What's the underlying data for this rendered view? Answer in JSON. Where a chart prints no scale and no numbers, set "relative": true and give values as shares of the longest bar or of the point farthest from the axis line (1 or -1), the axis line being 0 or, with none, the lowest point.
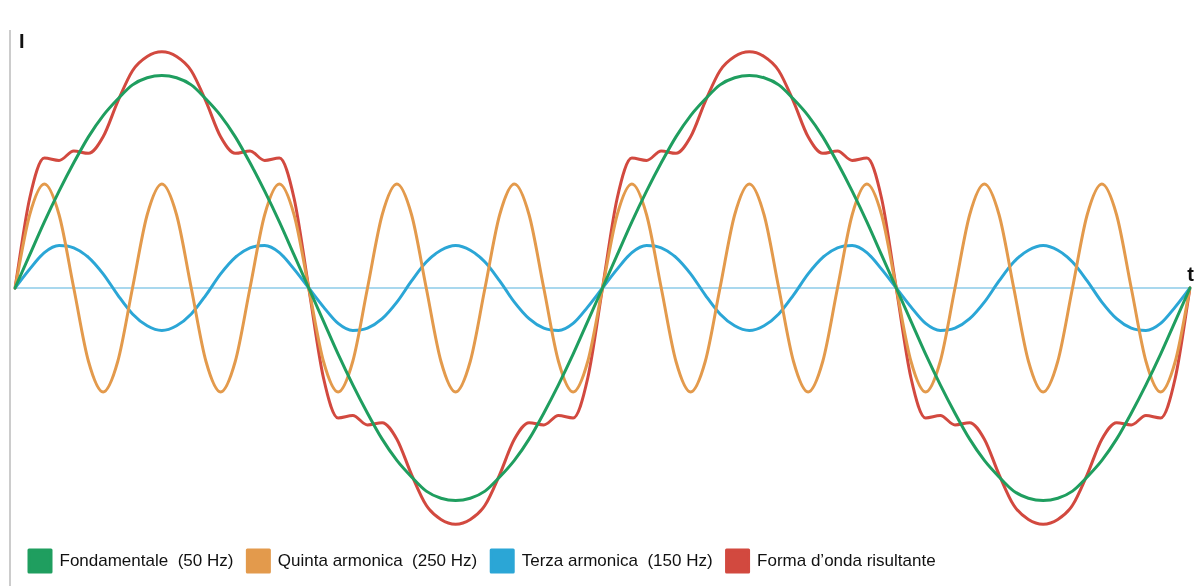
{
  "chart_data": {
    "type": "line",
    "relative": true,
    "xlabel": "t",
    "ylabel": "I",
    "legend": "bottom",
    "ref_lines": [
      {
        "axis": "y",
        "value": 0,
        "color": "#8ccbe8"
      }
    ],
    "marker": "none",
    "line_style": "solid",
    "categories": [
      null,
      null,
      null,
      null,
      null,
      null,
      null,
      null,
      null,
      null,
      null,
      null,
      null,
      null,
      null,
      null,
      null,
      null,
      null,
      null,
      null,
      null,
      null,
      null,
      null,
      null,
      null,
      null,
      null,
      null,
      null,
      null,
      null,
      null,
      null,
      null,
      null,
      null,
      null,
      null,
      null,
      null,
      null,
      null,
      null,
      null,
      null,
      null,
      null,
      null,
      null,
      null,
      null,
      null,
      null,
      null,
      null,
      null,
      null,
      null,
      null,
      null,
      null,
      null,
      null,
      null,
      null,
      null,
      null,
      null,
      null,
      null,
      null,
      null,
      null,
      null,
      null,
      null,
      null,
      null,
      null
    ],
    "series": [
      {
        "name": "Fondamentale  (50 Hz)",
        "color": "#1f9e5f",
        "values": [
          0,
          0.14,
          0.28,
          0.41,
          0.53,
          0.64,
          0.73,
          0.8,
          0.86,
          0.89,
          0.9,
          0.89,
          0.86,
          0.8,
          0.73,
          0.64,
          0.53,
          0.41,
          0.28,
          0.14,
          0,
          -0.14,
          -0.28,
          -0.41,
          -0.53,
          -0.64,
          -0.73,
          -0.8,
          -0.86,
          -0.89,
          -0.9,
          -0.89,
          -0.86,
          -0.8,
          -0.73,
          -0.64,
          -0.53,
          -0.41,
          -0.28,
          -0.14,
          0,
          0.14,
          0.28,
          0.41,
          0.53,
          0.64,
          0.73,
          0.8,
          0.86,
          0.89,
          0.9,
          0.89,
          0.86,
          0.8,
          0.73,
          0.64,
          0.53,
          0.41,
          0.28,
          0.14,
          0,
          -0.14,
          -0.28,
          -0.41,
          -0.53,
          -0.64,
          -0.73,
          -0.8,
          -0.86,
          -0.89,
          -0.9,
          -0.89,
          -0.86,
          -0.8,
          -0.73,
          -0.64,
          -0.53,
          -0.41,
          -0.28,
          -0.14,
          0
        ]
      },
      {
        "name": "Quinta armonica  (250 Hz)",
        "color": "#e39a4c",
        "values": [
          0,
          0.31,
          0.44,
          0.31,
          0,
          -0.31,
          -0.44,
          -0.31,
          0,
          0.31,
          0.44,
          0.31,
          0,
          -0.31,
          -0.44,
          -0.31,
          0,
          0.31,
          0.44,
          0.31,
          0,
          -0.31,
          -0.44,
          -0.31,
          0,
          0.31,
          0.44,
          0.31,
          0,
          -0.31,
          -0.44,
          -0.31,
          0,
          0.31,
          0.44,
          0.31,
          0,
          -0.31,
          -0.44,
          -0.31,
          0,
          0.31,
          0.44,
          0.31,
          0,
          -0.31,
          -0.44,
          -0.31,
          0,
          0.31,
          0.44,
          0.31,
          0,
          -0.31,
          -0.44,
          -0.31,
          0,
          0.31,
          0.44,
          0.31,
          0,
          -0.31,
          -0.44,
          -0.31,
          0,
          0.31,
          0.44,
          0.31,
          0,
          -0.31,
          -0.44,
          -0.31,
          0,
          0.31,
          0.44,
          0.31,
          0,
          -0.31,
          -0.44,
          -0.31,
          0
        ]
      },
      {
        "name": "Terza armonica  (150 Hz)",
        "color": "#2ba6d6",
        "values": [
          0,
          0.08,
          0.15,
          0.18,
          0.17,
          0.13,
          0.06,
          -0.03,
          -0.11,
          -0.16,
          -0.18,
          -0.16,
          -0.11,
          -0.03,
          0.06,
          0.13,
          0.17,
          0.18,
          0.15,
          0.08,
          0,
          -0.08,
          -0.15,
          -0.18,
          -0.17,
          -0.13,
          -0.06,
          0.03,
          0.11,
          0.16,
          0.18,
          0.16,
          0.11,
          0.03,
          -0.06,
          -0.13,
          -0.17,
          -0.18,
          -0.15,
          -0.08,
          0,
          0.08,
          0.15,
          0.18,
          0.17,
          0.13,
          0.06,
          -0.03,
          -0.11,
          -0.16,
          -0.18,
          -0.16,
          -0.11,
          -0.03,
          0.06,
          0.13,
          0.17,
          0.18,
          0.15,
          0.08,
          0,
          -0.08,
          -0.15,
          -0.18,
          -0.17,
          -0.13,
          -0.06,
          0.03,
          0.11,
          0.16,
          0.18,
          0.16,
          0.11,
          0.03,
          -0.06,
          -0.13,
          -0.17,
          -0.18,
          -0.15,
          -0.08,
          0
        ]
      },
      {
        "name": "Forma d’onda risultante",
        "color": "#d2493f",
        "values": [
          0,
          0.38,
          0.55,
          0.54,
          0.58,
          0.57,
          0.64,
          0.79,
          0.92,
          0.98,
          1,
          0.98,
          0.92,
          0.79,
          0.64,
          0.57,
          0.58,
          0.54,
          0.55,
          0.38,
          0,
          -0.38,
          -0.55,
          -0.54,
          -0.58,
          -0.57,
          -0.64,
          -0.79,
          -0.92,
          -0.98,
          -1,
          -0.98,
          -0.92,
          -0.79,
          -0.64,
          -0.57,
          -0.58,
          -0.54,
          -0.55,
          -0.38,
          0,
          0.38,
          0.55,
          0.54,
          0.58,
          0.57,
          0.64,
          0.79,
          0.92,
          0.98,
          1,
          0.98,
          0.92,
          0.79,
          0.64,
          0.57,
          0.58,
          0.54,
          0.55,
          0.38,
          0,
          -0.38,
          -0.55,
          -0.54,
          -0.58,
          -0.57,
          -0.64,
          -0.79,
          -0.92,
          -0.98,
          -1,
          -0.98,
          -0.92,
          -0.79,
          -0.64,
          -0.57,
          -0.58,
          -0.54,
          -0.55,
          -0.38,
          0
        ]
      }
    ]
  }
}
